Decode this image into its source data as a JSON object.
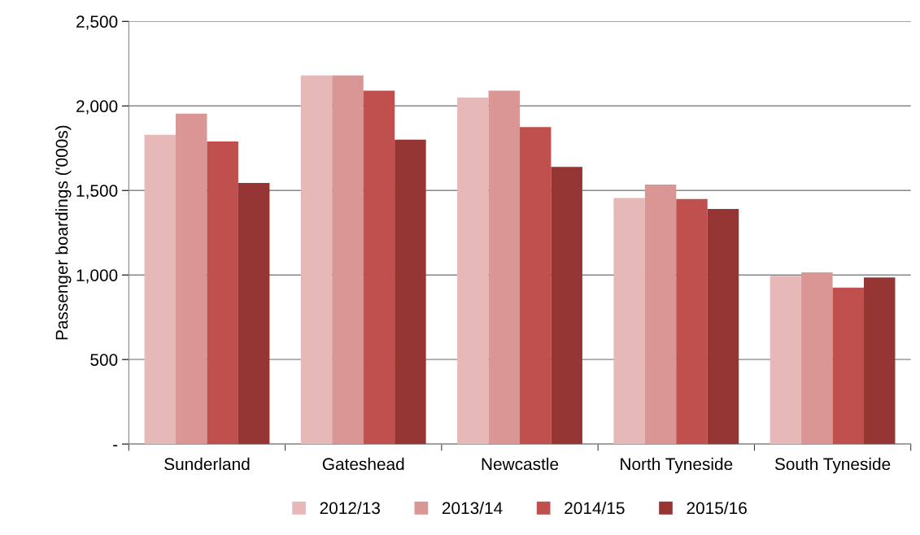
{
  "chart_data": {
    "type": "bar",
    "ylabel": "Passenger boardings ('000s)",
    "categories": [
      "Sunderland",
      "Gateshead",
      "Newcastle",
      "North Tyneside",
      "South Tyneside"
    ],
    "series": [
      {
        "name": "2012/13",
        "color": "#e6b8b7",
        "values": [
          1830,
          2180,
          2050,
          1455,
          995
        ]
      },
      {
        "name": "2013/14",
        "color": "#da9694",
        "values": [
          1955,
          2180,
          2090,
          1535,
          1015
        ]
      },
      {
        "name": "2014/15",
        "color": "#c0504d",
        "values": [
          1790,
          2090,
          1875,
          1450,
          925
        ]
      },
      {
        "name": "2015/16",
        "color": "#963634",
        "values": [
          1545,
          1800,
          1640,
          1390,
          985
        ]
      }
    ],
    "ylim": [
      0,
      2500
    ],
    "yticks": [
      {
        "value": 0,
        "label": "-"
      },
      {
        "value": 500,
        "label": "500"
      },
      {
        "value": 1000,
        "label": "1,000"
      },
      {
        "value": 1500,
        "label": "1,500"
      },
      {
        "value": 2000,
        "label": "2,000"
      },
      {
        "value": 2500,
        "label": "2,500"
      }
    ],
    "grid": "y",
    "legend": "bottom"
  }
}
